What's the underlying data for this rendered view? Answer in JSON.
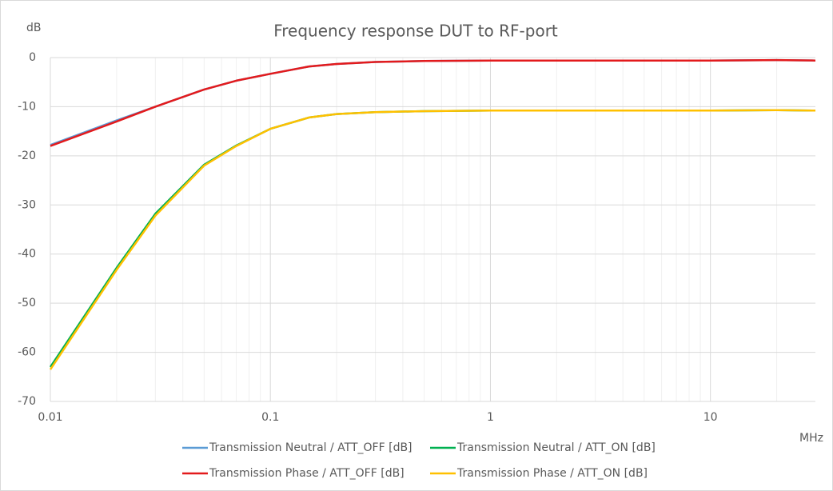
{
  "chart_data": {
    "type": "line",
    "title": "Frequency response  DUT to RF-port",
    "y_label": "dB",
    "x_label": "MHz",
    "xscale": "log",
    "x": [
      0.01,
      0.02,
      0.03,
      0.05,
      0.07,
      0.1,
      0.15,
      0.2,
      0.3,
      0.5,
      1,
      2,
      5,
      10,
      20,
      30
    ],
    "series": [
      {
        "name": "Transmission Neutral / ATT_OFF [dB]",
        "color": "#5b9bd5",
        "values": [
          -17.8,
          -12.8,
          -10,
          -6.5,
          -4.7,
          -3.3,
          -1.8,
          -1.3,
          -0.9,
          -0.7,
          -0.6,
          -0.6,
          -0.6,
          -0.6,
          -0.5,
          -0.6
        ]
      },
      {
        "name": "Transmission Neutral / ATT_ON [dB]",
        "color": "#00b050",
        "values": [
          -63,
          -42.8,
          -31.8,
          -21.8,
          -17.9,
          -14.5,
          -12.2,
          -11.5,
          -11.1,
          -10.9,
          -10.8,
          -10.8,
          -10.8,
          -10.8,
          -10.7,
          -10.8
        ]
      },
      {
        "name": "Transmission Phase / ATT_OFF [dB]",
        "color": "#e31a1c",
        "values": [
          -18,
          -13,
          -10,
          -6.5,
          -4.7,
          -3.3,
          -1.8,
          -1.3,
          -0.9,
          -0.7,
          -0.6,
          -0.6,
          -0.6,
          -0.6,
          -0.5,
          -0.6
        ]
      },
      {
        "name": "Transmission Phase / ATT_ON [dB]",
        "color": "#ffc000",
        "values": [
          -63.5,
          -43.2,
          -32.2,
          -22,
          -18,
          -14.5,
          -12.2,
          -11.5,
          -11.1,
          -10.9,
          -10.8,
          -10.8,
          -10.8,
          -10.8,
          -10.7,
          -10.8
        ]
      }
    ],
    "xlim": [
      0.01,
      30
    ],
    "xticks": [
      0.01,
      0.1,
      1,
      10
    ],
    "ylim": [
      -70,
      0
    ],
    "yticks": [
      0,
      -10,
      -20,
      -30,
      -40,
      -50,
      -60,
      -70
    ],
    "grid": true,
    "legend": "bottom"
  }
}
